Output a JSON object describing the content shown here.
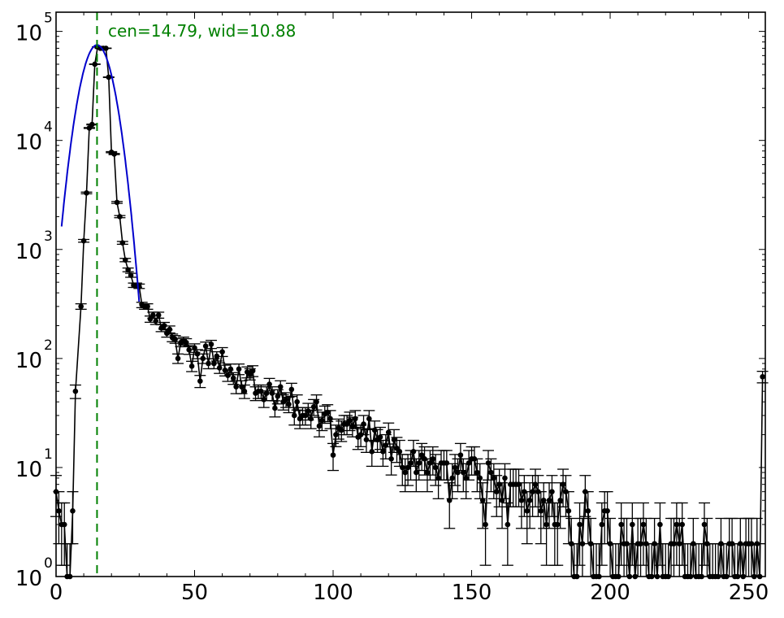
{
  "chart_data": {
    "type": "scatter",
    "title": "",
    "xlabel": "",
    "ylabel": "",
    "xlim": [
      0,
      256
    ],
    "ylim": [
      1,
      150000
    ],
    "yscale": "log",
    "grid": false,
    "annotation": "cen=14.79, wid=10.88",
    "fit": {
      "center": 14.79,
      "width": 10.88,
      "amplitude": 75000
    },
    "x_ticks": [
      {
        "value": 0,
        "label": "0"
      },
      {
        "value": 50,
        "label": "50"
      },
      {
        "value": 100,
        "label": "100"
      },
      {
        "value": 150,
        "label": "150"
      },
      {
        "value": 200,
        "label": "200"
      },
      {
        "value": 250,
        "label": "250"
      }
    ],
    "y_ticks": [
      {
        "value": 1,
        "base": "10",
        "exp": "0"
      },
      {
        "value": 10,
        "base": "10",
        "exp": "1"
      },
      {
        "value": 100,
        "base": "10",
        "exp": "2"
      },
      {
        "value": 1000,
        "base": "10",
        "exp": "3"
      },
      {
        "value": 10000,
        "base": "10",
        "exp": "4"
      },
      {
        "value": 100000,
        "base": "10",
        "exp": "5"
      }
    ],
    "series": [
      {
        "marker": "black dots with error bars",
        "points": [
          [
            0,
            6
          ],
          [
            1,
            4
          ],
          [
            2,
            3
          ],
          [
            3,
            3
          ],
          [
            4,
            1
          ],
          [
            5,
            1
          ],
          [
            6,
            4
          ],
          [
            7,
            50
          ],
          [
            9,
            300
          ],
          [
            10,
            1200
          ],
          [
            11,
            3300
          ],
          [
            12,
            13000
          ],
          [
            13,
            14000
          ],
          [
            14,
            50000
          ],
          [
            15,
            72000
          ],
          [
            16,
            70000
          ],
          [
            17,
            70000
          ],
          [
            18,
            70000
          ],
          [
            19,
            38000
          ],
          [
            20,
            7800
          ],
          [
            21,
            7500
          ],
          [
            22,
            2700
          ],
          [
            23,
            2000
          ],
          [
            24,
            1150
          ],
          [
            25,
            800
          ],
          [
            26,
            650
          ],
          [
            27,
            580
          ],
          [
            28,
            470
          ],
          [
            29,
            470
          ],
          [
            30,
            460
          ],
          [
            31,
            310
          ],
          [
            32,
            300
          ],
          [
            33,
            300
          ],
          [
            34,
            230
          ],
          [
            35,
            250
          ],
          [
            36,
            220
          ],
          [
            37,
            250
          ],
          [
            38,
            190
          ],
          [
            39,
            200
          ],
          [
            40,
            170
          ],
          [
            41,
            185
          ],
          [
            42,
            155
          ],
          [
            43,
            150
          ],
          [
            44,
            100
          ],
          [
            45,
            140
          ],
          [
            46,
            145
          ],
          [
            47,
            140
          ],
          [
            48,
            120
          ],
          [
            49,
            85
          ],
          [
            50,
            125
          ],
          [
            51,
            110
          ],
          [
            52,
            62
          ],
          [
            53,
            100
          ],
          [
            54,
            130
          ],
          [
            55,
            90
          ],
          [
            56,
            135
          ],
          [
            57,
            90
          ],
          [
            58,
            105
          ],
          [
            59,
            82
          ],
          [
            60,
            115
          ],
          [
            61,
            78
          ],
          [
            62,
            70
          ],
          [
            63,
            80
          ],
          [
            64,
            66
          ],
          [
            65,
            55
          ],
          [
            66,
            80
          ],
          [
            67,
            55
          ],
          [
            68,
            50
          ],
          [
            69,
            75
          ],
          [
            70,
            72
          ],
          [
            71,
            77
          ],
          [
            72,
            48
          ],
          [
            73,
            50
          ],
          [
            74,
            50
          ],
          [
            75,
            42
          ],
          [
            76,
            48
          ],
          [
            77,
            58
          ],
          [
            78,
            48
          ],
          [
            79,
            35
          ],
          [
            80,
            45
          ],
          [
            81,
            55
          ],
          [
            82,
            40
          ],
          [
            83,
            42
          ],
          [
            84,
            38
          ],
          [
            85,
            52
          ],
          [
            86,
            30
          ],
          [
            87,
            40
          ],
          [
            88,
            28
          ],
          [
            89,
            30
          ],
          [
            90,
            30
          ],
          [
            91,
            33
          ],
          [
            92,
            28
          ],
          [
            93,
            36
          ],
          [
            94,
            40
          ],
          [
            95,
            24
          ],
          [
            96,
            27
          ],
          [
            97,
            31
          ],
          [
            98,
            32
          ],
          [
            99,
            28
          ],
          [
            100,
            13
          ],
          [
            101,
            20
          ],
          [
            102,
            23
          ],
          [
            103,
            22
          ],
          [
            104,
            25
          ],
          [
            105,
            25
          ],
          [
            106,
            27
          ],
          [
            107,
            24
          ],
          [
            108,
            28
          ],
          [
            109,
            19
          ],
          [
            110,
            20
          ],
          [
            111,
            25
          ],
          [
            112,
            18
          ],
          [
            113,
            28
          ],
          [
            114,
            14
          ],
          [
            115,
            22
          ],
          [
            116,
            18
          ],
          [
            117,
            19
          ],
          [
            118,
            14
          ],
          [
            119,
            16
          ],
          [
            120,
            21
          ],
          [
            121,
            12
          ],
          [
            122,
            18
          ],
          [
            123,
            15
          ],
          [
            124,
            14
          ],
          [
            125,
            10
          ],
          [
            126,
            9
          ],
          [
            127,
            10
          ],
          [
            128,
            11
          ],
          [
            129,
            14
          ],
          [
            130,
            9
          ],
          [
            131,
            11
          ],
          [
            132,
            13
          ],
          [
            133,
            12
          ],
          [
            134,
            9
          ],
          [
            135,
            11
          ],
          [
            136,
            12
          ],
          [
            137,
            10
          ],
          [
            138,
            8
          ],
          [
            139,
            11
          ],
          [
            140,
            11
          ],
          [
            141,
            11
          ],
          [
            142,
            5
          ],
          [
            143,
            8
          ],
          [
            144,
            10
          ],
          [
            145,
            9
          ],
          [
            146,
            13
          ],
          [
            147,
            9
          ],
          [
            148,
            8
          ],
          [
            149,
            11
          ],
          [
            150,
            12
          ],
          [
            151,
            12
          ],
          [
            152,
            9
          ],
          [
            153,
            8
          ],
          [
            154,
            5
          ],
          [
            155,
            3
          ],
          [
            156,
            11
          ],
          [
            157,
            9
          ],
          [
            158,
            8
          ],
          [
            159,
            6
          ],
          [
            160,
            7
          ],
          [
            161,
            5
          ],
          [
            162,
            8
          ],
          [
            163,
            3
          ],
          [
            164,
            7
          ],
          [
            165,
            7
          ],
          [
            166,
            7
          ],
          [
            167,
            7
          ],
          [
            168,
            5
          ],
          [
            169,
            6
          ],
          [
            170,
            4
          ],
          [
            171,
            5
          ],
          [
            172,
            6
          ],
          [
            173,
            7
          ],
          [
            174,
            6
          ],
          [
            175,
            4
          ],
          [
            176,
            5
          ],
          [
            177,
            3
          ],
          [
            178,
            5
          ],
          [
            179,
            6
          ],
          [
            180,
            3
          ],
          [
            181,
            3
          ],
          [
            182,
            5
          ],
          [
            183,
            7
          ],
          [
            184,
            6
          ],
          [
            185,
            4
          ],
          [
            186,
            2
          ],
          [
            187,
            1
          ],
          [
            188,
            1
          ],
          [
            189,
            3
          ],
          [
            190,
            2
          ],
          [
            191,
            6
          ],
          [
            192,
            4
          ],
          [
            193,
            2
          ],
          [
            194,
            1
          ],
          [
            195,
            1
          ],
          [
            196,
            1
          ],
          [
            197,
            3
          ],
          [
            198,
            4
          ],
          [
            199,
            4
          ],
          [
            200,
            2
          ],
          [
            201,
            1
          ],
          [
            202,
            1
          ],
          [
            203,
            1
          ],
          [
            204,
            3
          ],
          [
            205,
            2
          ],
          [
            206,
            2
          ],
          [
            207,
            1
          ],
          [
            208,
            3
          ],
          [
            209,
            1
          ],
          [
            210,
            2
          ],
          [
            211,
            2
          ],
          [
            212,
            3
          ],
          [
            213,
            2
          ],
          [
            214,
            1
          ],
          [
            215,
            1
          ],
          [
            216,
            2
          ],
          [
            217,
            1
          ],
          [
            218,
            3
          ],
          [
            219,
            1
          ],
          [
            220,
            1
          ],
          [
            221,
            1
          ],
          [
            222,
            2
          ],
          [
            223,
            2
          ],
          [
            224,
            3
          ],
          [
            225,
            2
          ],
          [
            226,
            3
          ],
          [
            227,
            1
          ],
          [
            228,
            1
          ],
          [
            229,
            1
          ],
          [
            230,
            2
          ],
          [
            231,
            1
          ],
          [
            232,
            1
          ],
          [
            233,
            1
          ],
          [
            234,
            3
          ],
          [
            235,
            2
          ],
          [
            236,
            1
          ],
          [
            237,
            1
          ],
          [
            238,
            1
          ],
          [
            239,
            1
          ],
          [
            240,
            2
          ],
          [
            241,
            1
          ],
          [
            242,
            1
          ],
          [
            243,
            2
          ],
          [
            244,
            2
          ],
          [
            245,
            1
          ],
          [
            246,
            1
          ],
          [
            247,
            2
          ],
          [
            248,
            1
          ],
          [
            249,
            2
          ],
          [
            250,
            2
          ],
          [
            251,
            2
          ],
          [
            252,
            1
          ],
          [
            253,
            2
          ],
          [
            254,
            1
          ],
          [
            255,
            68
          ]
        ]
      }
    ],
    "colors": {
      "points": "#000000",
      "fit_line": "#0000cc",
      "center_line": "#008000",
      "annotation": "#008000"
    }
  }
}
